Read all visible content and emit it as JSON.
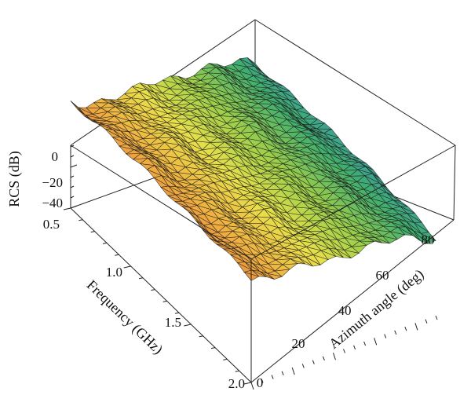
{
  "chart_data": {
    "type": "surface3d",
    "xlabel": "Azimuth angle (deg)",
    "ylabel": "Frequency (GHz)",
    "zlabel": "RCS (dB)",
    "x_ticks": [
      "0",
      "20",
      "40",
      "60",
      "80"
    ],
    "y_ticks": [
      "0.5",
      "1.0",
      "1.5",
      "2.0"
    ],
    "z_ticks": [
      "0",
      "−20",
      "−40"
    ],
    "xlim": [
      0,
      90
    ],
    "ylim": [
      0.5,
      2.0
    ],
    "zlim": [
      -50,
      10
    ],
    "colormap": [
      "#e0703c",
      "#f0b040",
      "#e8e04a",
      "#9ccf4a",
      "#3fae6e",
      "#3d8fc4"
    ],
    "frequencies_ghz": [
      0.5,
      0.8,
      1.1,
      1.4,
      1.7,
      2.0
    ],
    "azimuth_deg": [
      0,
      10,
      20,
      30,
      40,
      50,
      60,
      70,
      80,
      90
    ],
    "rcs_db": [
      [
        2,
        -3,
        -2,
        -4,
        -3,
        -5,
        -4,
        -6,
        -8,
        -12
      ],
      [
        4,
        0,
        0,
        -2,
        -2,
        -3,
        -3,
        -5,
        -7,
        -10
      ],
      [
        4,
        1,
        0,
        -1,
        -2,
        -2,
        -3,
        -4,
        -6,
        -9
      ],
      [
        3,
        0,
        -1,
        -2,
        -2,
        -3,
        -3,
        -4,
        -6,
        -9
      ],
      [
        2,
        -1,
        -2,
        -2,
        -3,
        -3,
        -4,
        -5,
        -7,
        -10
      ],
      [
        1,
        -2,
        -3,
        -3,
        -4,
        -4,
        -5,
        -6,
        -8,
        -12
      ]
    ],
    "grid": false,
    "legend": "none"
  }
}
